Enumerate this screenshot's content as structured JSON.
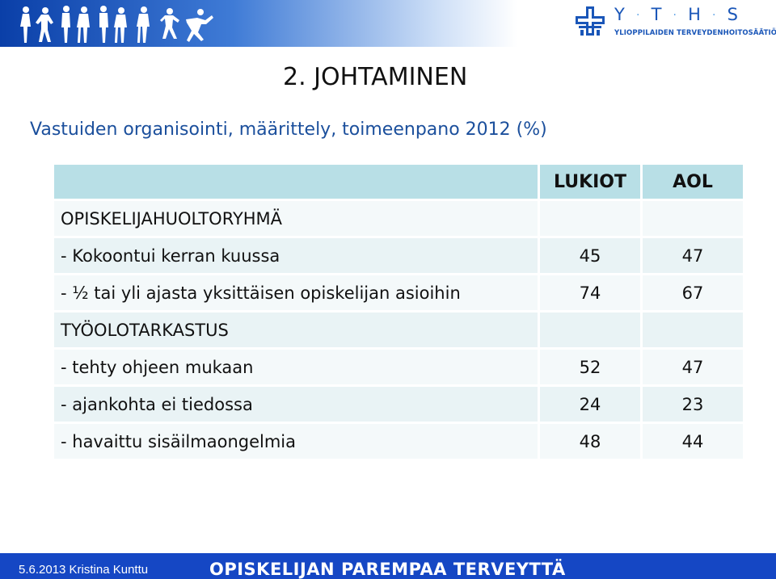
{
  "header": {
    "logo": {
      "letters": [
        "Y",
        "T",
        "H",
        "S"
      ],
      "subtitle": "YLIOPPILAIDEN TERVEYDENHOITOSÄÄTIÖ"
    },
    "banner_icon": "people-silhouettes-icon"
  },
  "slide": {
    "title": "2. JOHTAMINEN",
    "subtitle": "Vastuiden organisointi, määrittely, toimeenpano 2012 (%)"
  },
  "table": {
    "columns": [
      "",
      "LUKIOT",
      "AOL"
    ],
    "rows": [
      {
        "label": "OPISKELIJAHUOLTORYHMÄ",
        "lukiot": "",
        "aol": ""
      },
      {
        "label": "- Kokoontui kerran kuussa",
        "lukiot": "45",
        "aol": "47"
      },
      {
        "label": "- ½ tai yli ajasta yksittäisen opiskelijan asioihin",
        "lukiot": "74",
        "aol": "67"
      },
      {
        "label": "TYÖOLOTARKASTUS",
        "lukiot": "",
        "aol": ""
      },
      {
        "label": "- tehty ohjeen mukaan",
        "lukiot": "52",
        "aol": "47"
      },
      {
        "label": "- ajankohta ei tiedossa",
        "lukiot": "24",
        "aol": "23"
      },
      {
        "label": "- havaittu sisäilmaongelmia",
        "lukiot": "48",
        "aol": "44"
      }
    ]
  },
  "footer": {
    "date_author": "5.6.2013 Kristina Kunttu",
    "tagline": "OPISKELIJAN PAREMPAA TERVEYTTÄ"
  },
  "colors": {
    "header_row": "#b8dfe6",
    "body_row": "#e9f3f5",
    "subtitle": "#1b4f9c",
    "footer": "#1547c4",
    "logo": "#1a56b8"
  }
}
